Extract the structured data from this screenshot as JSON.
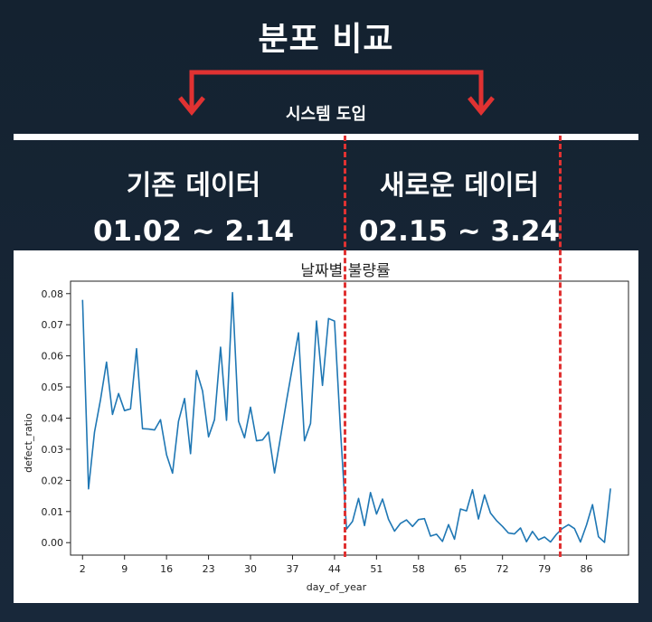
{
  "header": {
    "title": "분포 비교",
    "system_label": "시스템 도입"
  },
  "periods": {
    "old": {
      "name": "기존 데이터",
      "range": "01.02 ~ 2.14"
    },
    "new": {
      "name": "새로운 데이터",
      "range": "02.15 ~ 3.24"
    }
  },
  "colors": {
    "accent": "#e03232",
    "line": "#1f77b4",
    "background": "#16263a"
  },
  "chart_data": {
    "type": "line",
    "title": "날짜별 불량률",
    "xlabel": "day_of_year",
    "ylabel": "defect_ratio",
    "xlim": [
      0,
      93
    ],
    "ylim": [
      -0.004,
      0.084
    ],
    "xticks": [
      2,
      9,
      16,
      23,
      30,
      37,
      44,
      51,
      58,
      65,
      72,
      79,
      86
    ],
    "yticks": [
      0.0,
      0.01,
      0.02,
      0.03,
      0.04,
      0.05,
      0.06,
      0.07,
      0.08
    ],
    "ytick_labels": [
      "0.00",
      "0.01",
      "0.02",
      "0.03",
      "0.04",
      "0.05",
      "0.06",
      "0.07",
      "0.08"
    ],
    "grid": false,
    "series": [
      {
        "x": [
          2,
          3,
          4,
          5,
          6,
          7,
          8,
          9,
          10,
          11,
          12,
          13,
          14,
          15,
          16,
          17,
          18,
          19,
          20,
          21,
          22,
          23,
          24,
          25,
          26,
          27,
          28,
          29,
          30,
          31,
          32,
          33,
          34,
          35,
          36,
          37,
          38,
          39,
          40,
          41,
          42,
          43,
          44,
          45,
          46,
          47,
          48,
          49,
          50,
          51,
          52,
          53,
          54,
          55,
          56,
          57,
          58,
          59,
          60,
          61,
          62,
          63,
          64,
          65,
          66,
          67,
          68,
          69,
          70,
          71,
          72,
          73,
          74,
          75,
          76,
          77,
          78,
          79,
          80,
          81,
          82,
          83,
          84,
          85,
          86,
          87,
          88,
          89,
          90
        ],
        "y": [
          0.078,
          0.0173,
          0.0355,
          0.046,
          0.058,
          0.0412,
          0.0479,
          0.0424,
          0.043,
          0.0623,
          0.0366,
          0.0365,
          0.0362,
          0.0395,
          0.0282,
          0.0223,
          0.039,
          0.0463,
          0.0286,
          0.0553,
          0.0487,
          0.034,
          0.0395,
          0.0628,
          0.0393,
          0.0803,
          0.039,
          0.0337,
          0.0435,
          0.0327,
          0.033,
          0.0355,
          0.0224,
          0.0338,
          0.0455,
          0.0566,
          0.0674,
          0.0327,
          0.0383,
          0.0712,
          0.0505,
          0.072,
          0.0712,
          0.0363,
          0.0044,
          0.0068,
          0.0142,
          0.0055,
          0.0161,
          0.0092,
          0.014,
          0.0075,
          0.0037,
          0.0062,
          0.0073,
          0.0052,
          0.0074,
          0.0077,
          0.0021,
          0.0027,
          0.0004,
          0.0058,
          0.0011,
          0.0108,
          0.0102,
          0.017,
          0.0076,
          0.0153,
          0.0095,
          0.0071,
          0.0052,
          0.0031,
          0.0028,
          0.0047,
          0.0003,
          0.0036,
          0.0009,
          0.0018,
          0.0002,
          0.0027,
          0.0046,
          0.0058,
          0.0045,
          0.0002,
          0.0057,
          0.0122,
          0.0019,
          0.0001,
          0.0174
        ]
      }
    ]
  }
}
